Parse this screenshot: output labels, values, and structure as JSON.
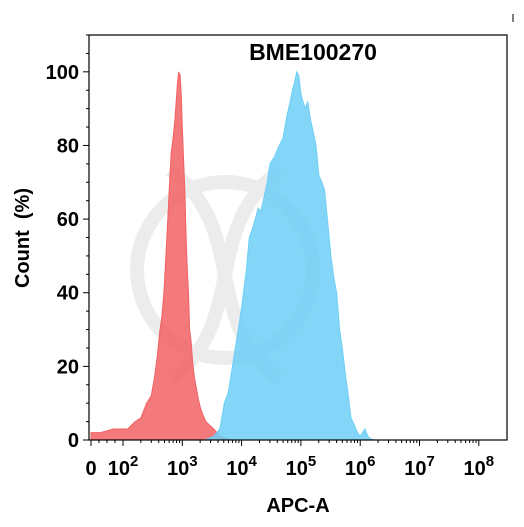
{
  "chart_data": {
    "type": "area",
    "title": "BME100270",
    "xlabel": "APC-A",
    "ylabel": "Count  (%)",
    "x_scale": "biexponential-log",
    "xlim": [
      0,
      100000000
    ],
    "ylim": [
      0,
      110
    ],
    "grid": false,
    "legend": "none",
    "x_ticks": [
      {
        "value": 0,
        "label": "0",
        "exp": ""
      },
      {
        "value": 100,
        "label": "10",
        "exp": "2"
      },
      {
        "value": 1000,
        "label": "10",
        "exp": "3"
      },
      {
        "value": 10000,
        "label": "10",
        "exp": "4"
      },
      {
        "value": 100000,
        "label": "10",
        "exp": "5"
      },
      {
        "value": 1000000,
        "label": "10",
        "exp": "6"
      },
      {
        "value": 10000000,
        "label": "10",
        "exp": "7"
      },
      {
        "value": 100000000,
        "label": "10",
        "exp": "8"
      }
    ],
    "y_ticks": [
      0,
      20,
      40,
      60,
      80,
      100
    ],
    "series": [
      {
        "color": "#f26163",
        "points": [
          [
            0,
            2
          ],
          [
            30,
            2
          ],
          [
            70,
            3
          ],
          [
            120,
            3
          ],
          [
            160,
            5
          ],
          [
            200,
            6
          ],
          [
            250,
            10
          ],
          [
            300,
            12
          ],
          [
            340,
            17
          ],
          [
            380,
            23
          ],
          [
            420,
            30
          ],
          [
            450,
            33
          ],
          [
            490,
            40
          ],
          [
            530,
            50
          ],
          [
            570,
            60
          ],
          [
            610,
            70
          ],
          [
            650,
            78
          ],
          [
            700,
            82
          ],
          [
            750,
            87
          ],
          [
            790,
            92
          ],
          [
            830,
            97
          ],
          [
            870,
            100
          ],
          [
            920,
            99
          ],
          [
            960,
            94
          ],
          [
            1000,
            85
          ],
          [
            1040,
            78
          ],
          [
            1100,
            68
          ],
          [
            1150,
            57
          ],
          [
            1200,
            48
          ],
          [
            1270,
            40
          ],
          [
            1330,
            30
          ],
          [
            1400,
            27
          ],
          [
            1500,
            21
          ],
          [
            1600,
            17
          ],
          [
            1730,
            14
          ],
          [
            1870,
            11
          ],
          [
            2000,
            9
          ],
          [
            2200,
            7
          ],
          [
            2500,
            5
          ],
          [
            2900,
            4
          ],
          [
            3400,
            3
          ],
          [
            4300,
            1
          ],
          [
            5500,
            0.5
          ],
          [
            7000,
            0
          ]
        ]
      },
      {
        "color": "#6dcff6",
        "points": [
          [
            2400,
            0
          ],
          [
            3400,
            1
          ],
          [
            4300,
            3
          ],
          [
            5100,
            10
          ],
          [
            6000,
            13
          ],
          [
            7000,
            20
          ],
          [
            8000,
            26
          ],
          [
            9000,
            31
          ],
          [
            10000,
            36
          ],
          [
            12000,
            46
          ],
          [
            13500,
            55
          ],
          [
            15000,
            57
          ],
          [
            17000,
            60
          ],
          [
            19000,
            63
          ],
          [
            21000,
            62
          ],
          [
            24000,
            66
          ],
          [
            27000,
            70
          ],
          [
            30000,
            75
          ],
          [
            36000,
            77
          ],
          [
            43000,
            80
          ],
          [
            50000,
            82
          ],
          [
            58000,
            88
          ],
          [
            66000,
            92
          ],
          [
            72000,
            95
          ],
          [
            80000,
            98
          ],
          [
            85000,
            100
          ],
          [
            92000,
            99
          ],
          [
            100000,
            94
          ],
          [
            108000,
            92
          ],
          [
            120000,
            90
          ],
          [
            130000,
            92
          ],
          [
            145000,
            87
          ],
          [
            160000,
            84
          ],
          [
            180000,
            80
          ],
          [
            200000,
            72
          ],
          [
            225000,
            70
          ],
          [
            250000,
            68
          ],
          [
            280000,
            60
          ],
          [
            320000,
            50
          ],
          [
            360000,
            44
          ],
          [
            400000,
            40
          ],
          [
            450000,
            30
          ],
          [
            500000,
            25
          ],
          [
            560000,
            18
          ],
          [
            630000,
            12
          ],
          [
            700000,
            6
          ],
          [
            800000,
            4
          ],
          [
            900000,
            2
          ],
          [
            1000000,
            1
          ],
          [
            1200000,
            3
          ],
          [
            1350000,
            1
          ],
          [
            1500000,
            0.3
          ],
          [
            1800000,
            0
          ]
        ]
      }
    ]
  }
}
